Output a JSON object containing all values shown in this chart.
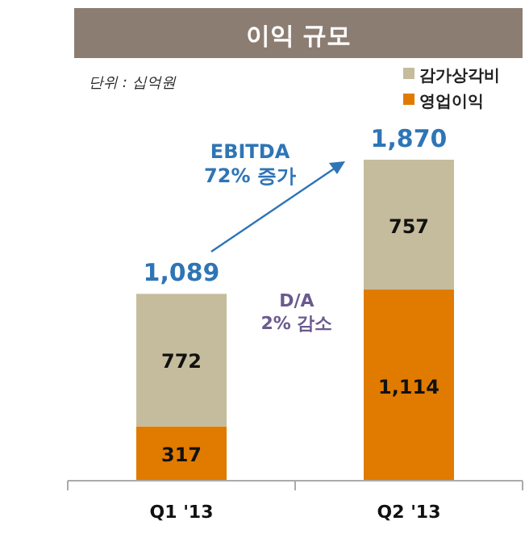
{
  "chart_data": {
    "type": "bar",
    "stacked": true,
    "title": "이익 규모",
    "subtitle": "단위 : 십억원",
    "categories": [
      "Q1 '13",
      "Q2 '13"
    ],
    "series": [
      {
        "name": "영업이익",
        "color": "#e07b00",
        "values": [
          317,
          1114
        ],
        "value_labels": [
          "317",
          "1,114"
        ]
      },
      {
        "name": "감가상각비",
        "color": "#c4bc9c",
        "values": [
          772,
          757
        ],
        "value_labels": [
          "772",
          "757"
        ]
      }
    ],
    "totals": [
      "1,089",
      "1,870"
    ],
    "legend": "top right",
    "annotations": [
      "EBITDA 72% 증가",
      "D/A 2% 감소"
    ]
  }
}
